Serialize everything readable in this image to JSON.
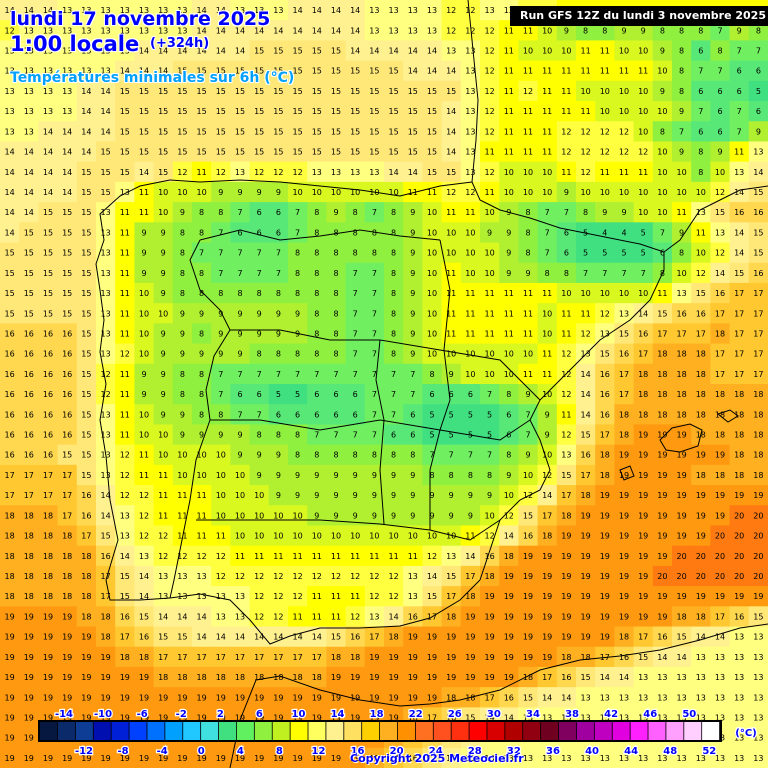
{
  "header": {
    "date": "lundi 17 novembre 2025",
    "time": "1:00 locale",
    "lead": "(+324h)",
    "parameter": "Températures minimales sur 6h (°C)"
  },
  "run_label": "Run GFS 12Z du lundi 3 novembre 2025",
  "copyright": "Copyright 2025 Meteociel.fr",
  "legend": {
    "unit": "(°C)",
    "top_labels": [
      "-14",
      "-10",
      "-6",
      "-2",
      "2",
      "6",
      "10",
      "14",
      "18",
      "22",
      "26",
      "30",
      "34",
      "38",
      "42",
      "46",
      "50"
    ],
    "bottom_labels": [
      "-12",
      "-8",
      "-4",
      "0",
      "4",
      "8",
      "12",
      "16",
      "20",
      "24",
      "28",
      "32",
      "36",
      "40",
      "44",
      "48",
      "52"
    ],
    "colors": [
      "#061840",
      "#0a2a6a",
      "#0d3d94",
      "#0010b0",
      "#0020d8",
      "#0040ff",
      "#0070ff",
      "#00a0ff",
      "#20c8ff",
      "#40e0e0",
      "#40e080",
      "#60f060",
      "#90f040",
      "#c0f020",
      "#ffff00",
      "#ffff60",
      "#fff090",
      "#ffe060",
      "#ffd000",
      "#ffb020",
      "#ff9000",
      "#ff7020",
      "#ff5020",
      "#ff3010",
      "#ff0000",
      "#d80000",
      "#b00000",
      "#900010",
      "#700020",
      "#800060",
      "#a000a0",
      "#c000c0",
      "#e000e0",
      "#ff20ff",
      "#ff60ff",
      "#ffa0ff",
      "#ffd0ff",
      "#ffffff"
    ]
  },
  "map_data": {
    "grid_rows": [
      "14 14 14 13 13 13 13 13 13 13 14 14 13 13 13 14 14 14 14 13 13 13 13 12 12 13 13 12 12 11 11 11 11 11 11 11 11 11 11 11",
      "12 13 13 13 13 13 13 13 13 13 14 14 14 14 14 14 14 14 14 13 13 13 13 12 12 12 11 11 10 9 8 8 9 9 8 8 8 7 9 8",
      "13 13 13 13 13 13 13 14 14 14 14 14 14 15 15 15 15 15 14 14 14 14 14 13 13 12 11 10 10 10 11 11 10 10 9 8 6 8 7 7",
      "13 13 13 13 13 13 14 14 14 15 15 15 15 15 15 15 15 15 15 15 15 14 14 14 13 12 11 11 11 11 11 11 11 11 10 8 7 7 6 6",
      "13 13 13 13 14 14 15 15 15 15 15 15 15 15 15 15 15 15 15 15 15 15 15 15 13 12 11 12 11 11 10 10 10 10 9 8 6 6 6 5",
      "13 13 13 13 14 14 15 15 15 15 15 15 15 15 15 15 15 15 15 15 15 15 15 14 13 12 11 11 11 11 11 10 10 10 10 9 7 6 7 6",
      "13 13 14 14 14 14 15 15 15 15 15 15 15 15 15 15 15 15 15 15 15 15 15 14 13 12 11 11 11 12 12 12 12 10 8 7 6 6 7 9",
      "14 14 14 14 14 15 15 15 15 15 15 15 15 15 15 15 15 15 15 15 15 15 15 14 13 11 11 11 11 12 12 12 12 12 10 9 8 9 11 13",
      "14 14 14 14 15 15 15 14 15 12 11 12 13 12 12 12 13 13 13 13 14 14 15 15 13 12 10 10 10 11 12 11 11 11 10 10 8 10 13 14",
      "14 14 14 14 15 15 13 11 10 10 10 9 9 9 9 10 10 10 10 10 10 11 11 12 12 11 10 10 10 9 10 10 10 10 10 10 10 12 14 15",
      "14 14 15 15 15 13 11 11 10 9 8 8 7 6 6 7 8 9 8 7 8 9 10 11 11 10 9 8 7 7 8 9 9 10 10 11 13 15 16 16",
      "14 15 15 15 15 13 11 9 9 8 8 7 6 6 6 7 8 8 8 8 8 9 10 10 10 9 9 8 7 6 5 4 4 5 7 9 11 13 14 15",
      "15 15 15 15 15 13 11 9 9 8 7 7 7 7 7 8 8 8 8 8 8 9 10 10 10 10 9 8 7 6 5 5 5 5 6 8 10 12 14 15",
      "15 15 15 15 15 13 11 9 9 8 8 7 7 7 7 8 8 8 7 7 8 9 10 11 10 10 9 9 8 8 7 7 7 7 8 10 12 14 15 16",
      "15 15 15 15 15 13 11 10 9 8 8 8 8 8 8 8 8 8 7 7 8 9 10 11 11 11 11 11 11 10 10 10 10 10 11 13 15 16 17 17",
      "15 15 15 15 15 13 11 10 10 9 9 9 9 9 9 9 8 8 7 7 8 9 10 11 11 11 11 11 10 11 11 12 13 14 15 16 16 17 17 17",
      "16 16 16 16 15 13 11 10 9 9 8 9 9 9 9 9 8 8 7 7 8 9 10 11 11 11 11 11 10 11 12 13 15 16 17 17 17 18 17 17",
      "16 16 16 16 15 13 12 10 9 9 9 9 9 8 8 8 8 8 7 7 8 9 10 10 10 10 10 10 11 12 13 15 16 17 18 18 18 17 17 17",
      "16 16 16 16 15 12 11 9 9 8 8 7 7 7 7 7 7 7 7 7 7 7 8 9 10 10 10 11 11 12 14 16 17 18 18 18 18 17 17 17",
      "16 16 16 16 15 12 11 9 9 8 8 7 6 6 5 5 6 6 6 7 7 7 6 6 6 7 8 9 10 12 14 16 17 18 18 18 18 18 18 18",
      "16 16 16 16 15 13 11 10 9 9 8 8 7 7 6 6 6 6 6 7 7 6 5 5 5 5 6 7 9 11 14 16 18 18 18 18 18 18 18 18",
      "16 16 16 16 15 13 11 10 10 9 9 9 9 8 8 8 7 7 7 7 6 6 5 5 5 5 6 7 9 12 15 17 18 19 19 19 18 18 18 18",
      "16 16 16 15 15 13 12 11 10 10 10 10 9 9 9 8 8 8 8 8 8 8 7 7 7 7 8 9 10 13 16 18 19 19 19 19 19 19 18 18",
      "17 17 17 17 15 13 12 11 11 10 10 10 10 9 9 9 9 9 9 9 9 9 8 8 8 8 9 10 12 15 17 18 19 19 19 19 18 18 18 18",
      "17 17 17 17 16 14 12 12 11 11 11 10 10 10 9 9 9 9 9 9 9 9 9 9 9 9 10 12 14 17 18 19 19 19 19 19 19 19 19 19",
      "18 18 18 17 16 14 13 12 11 11 11 10 10 10 10 10 9 9 9 9 9 9 9 9 9 10 12 15 17 18 19 19 19 19 19 19 19 19 20 20",
      "18 18 18 18 17 15 13 12 12 11 11 11 10 10 10 10 10 10 10 10 10 10 10 10 11 12 14 16 18 19 19 19 19 19 19 19 19 20 20 20",
      "18 18 18 18 18 16 14 13 12 12 12 12 11 11 11 11 11 11 11 11 11 11 12 13 14 16 18 19 19 19 19 19 19 19 19 20 20 20 20 20",
      "18 18 18 18 18 17 15 14 13 13 13 12 12 12 12 12 12 12 12 12 12 13 14 15 17 18 19 19 19 19 19 19 19 19 20 20 20 20 20 20",
      "18 18 18 18 18 17 15 14 13 13 13 13 13 12 12 12 11 11 11 12 12 13 15 17 18 19 19 19 19 19 19 19 19 19 19 19 19 19 19 19",
      "19 19 19 19 18 18 16 15 14 14 14 13 13 12 12 11 11 11 12 13 14 16 17 18 19 19 19 19 19 19 19 19 19 19 19 18 18 17 16 15",
      "19 19 19 19 19 18 17 16 15 15 14 14 14 14 14 14 14 15 16 17 18 19 19 19 19 19 19 19 19 19 19 19 18 17 16 15 14 14 13 13",
      "19 19 19 19 19 19 18 18 17 17 17 17 17 17 17 17 17 18 18 19 19 19 19 19 19 19 19 19 19 18 18 17 16 15 14 14 13 13 13 13",
      "19 19 19 19 19 19 19 19 18 18 18 18 18 18 18 18 18 19 19 19 19 19 19 19 19 19 19 18 17 16 15 14 14 13 13 13 13 13 13 13",
      "19 19 19 19 19 19 19 19 19 19 19 19 19 19 19 19 19 19 19 19 19 19 19 18 18 17 16 15 14 14 13 13 13 13 13 13 13 13 13 13",
      "19 19 19 19 19 19 19 19 19 19 19 19 19 19 19 19 19 19 19 19 19 18 17 16 15 14 14 13 13 13 13 13 13 13 13 13 13 13 13 13",
      "19 19 19 19 19 19 19 19 19 19 19 19 19 19 19 19 19 19 19 19 18 17 16 15 14 13 13 13 13 13 13 13 13 13 13 13 13 13 13 13",
      "19 19 19 19 19 19 19 19 19 19 19 19 19 19 19 19 19 19 19 18 17 16 15 14 13 13 13 13 13 13 13 13 13 13 13 13 13 13 13 13"
    ]
  }
}
